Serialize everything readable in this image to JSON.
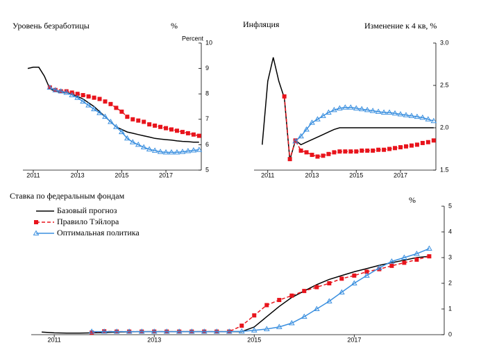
{
  "chart_data": [
    {
      "type": "line",
      "title": "Уровень безработицы",
      "unit": "%",
      "axis_label": "Percent",
      "x": [
        2010.75,
        2011,
        2011.25,
        2011.5,
        2011.75,
        2012,
        2012.25,
        2012.5,
        2012.75,
        2013,
        2013.25,
        2013.5,
        2013.75,
        2014,
        2014.25,
        2014.5,
        2014.75,
        2015,
        2015.25,
        2015.5,
        2015.75,
        2016,
        2016.25,
        2016.5,
        2016.75,
        2017,
        2017.25,
        2017.5,
        2017.75,
        2018,
        2018.25,
        2018.5
      ],
      "xlim": [
        2010.53,
        2018.6
      ],
      "xticks": [
        2011,
        2013,
        2015,
        2017
      ],
      "ylim": [
        5,
        10
      ],
      "yticks": [
        5,
        6,
        7,
        8,
        9,
        10
      ],
      "series": [
        {
          "color": "#000000",
          "values": [
            9.0,
            9.05,
            9.05,
            8.7,
            8.2,
            8.1,
            8.05,
            8.05,
            8.0,
            7.9,
            7.8,
            7.65,
            7.5,
            7.3,
            7.1,
            6.9,
            6.7,
            6.6,
            6.5,
            6.45,
            6.4,
            6.35,
            6.3,
            6.25,
            6.22,
            6.2,
            6.18,
            6.15,
            6.13,
            6.12,
            6.1,
            6.1
          ]
        },
        {
          "color": "#e8141c",
          "marker": "square",
          "dash": true,
          "values": [
            null,
            null,
            null,
            null,
            8.25,
            8.15,
            8.1,
            8.1,
            8.05,
            8.0,
            7.95,
            7.9,
            7.85,
            7.8,
            7.7,
            7.6,
            7.45,
            7.3,
            7.1,
            7.0,
            6.95,
            6.9,
            6.8,
            6.75,
            6.7,
            6.65,
            6.6,
            6.55,
            6.5,
            6.45,
            6.4,
            6.35
          ]
        },
        {
          "color": "#3a8fdf",
          "marker": "triangle",
          "values": [
            null,
            null,
            null,
            null,
            8.25,
            8.15,
            8.1,
            8.05,
            7.95,
            7.85,
            7.7,
            7.55,
            7.4,
            7.25,
            7.1,
            6.9,
            6.7,
            6.5,
            6.25,
            6.1,
            6.0,
            5.9,
            5.82,
            5.77,
            5.72,
            5.7,
            5.7,
            5.7,
            5.72,
            5.75,
            5.78,
            5.8
          ]
        }
      ]
    },
    {
      "type": "line",
      "title": "Инфляция",
      "unit": "Изменение к 4 кв, %",
      "x": [
        2010.75,
        2011,
        2011.25,
        2011.5,
        2011.75,
        2012,
        2012.25,
        2012.5,
        2012.75,
        2013,
        2013.25,
        2013.5,
        2013.75,
        2014,
        2014.25,
        2014.5,
        2014.75,
        2015,
        2015.25,
        2015.5,
        2015.75,
        2016,
        2016.25,
        2016.5,
        2016.75,
        2017,
        2017.25,
        2017.5,
        2017.75,
        2018,
        2018.25,
        2018.5
      ],
      "xlim": [
        2010.38,
        2018.6
      ],
      "xticks": [
        2011,
        2013,
        2015,
        2017
      ],
      "ylim": [
        1.5,
        3.0
      ],
      "yticks": [
        1.5,
        {
          "value": 2,
          "label": "2.0"
        },
        2.5,
        {
          "value": 3,
          "label": "3.0"
        }
      ],
      "series": [
        {
          "color": "#000000",
          "values": [
            1.8,
            2.55,
            2.83,
            2.55,
            2.35,
            1.62,
            1.85,
            1.8,
            1.83,
            1.86,
            1.89,
            1.92,
            1.95,
            1.98,
            2.0,
            2.0,
            2.0,
            2.0,
            2.0,
            2.0,
            2.0,
            2.0,
            2.0,
            2.0,
            2.0,
            2.0,
            2.0,
            2.0,
            2.0,
            2.0,
            2.0,
            2.0
          ]
        },
        {
          "color": "#e8141c",
          "marker": "square",
          "dash": true,
          "values": [
            null,
            null,
            null,
            null,
            2.37,
            1.63,
            1.85,
            1.73,
            1.71,
            1.68,
            1.66,
            1.67,
            1.69,
            1.71,
            1.72,
            1.72,
            1.72,
            1.72,
            1.73,
            1.73,
            1.73,
            1.74,
            1.74,
            1.75,
            1.76,
            1.77,
            1.78,
            1.79,
            1.8,
            1.82,
            1.83,
            1.85
          ]
        },
        {
          "color": "#3a8fdf",
          "marker": "triangle",
          "values": [
            null,
            null,
            null,
            null,
            null,
            null,
            1.84,
            1.9,
            1.98,
            2.06,
            2.1,
            2.14,
            2.18,
            2.21,
            2.23,
            2.24,
            2.24,
            2.23,
            2.22,
            2.21,
            2.2,
            2.19,
            2.18,
            2.18,
            2.17,
            2.16,
            2.15,
            2.14,
            2.13,
            2.12,
            2.1,
            2.08
          ]
        }
      ]
    },
    {
      "type": "line",
      "title": "Ставка по федеральным фондам",
      "unit": "%",
      "x": [
        2010.75,
        2011,
        2011.25,
        2011.5,
        2011.75,
        2012,
        2012.25,
        2012.5,
        2012.75,
        2013,
        2013.25,
        2013.5,
        2013.75,
        2014,
        2014.25,
        2014.5,
        2014.75,
        2015,
        2015.25,
        2015.5,
        2015.75,
        2016,
        2016.25,
        2016.5,
        2016.75,
        2017,
        2017.25,
        2017.5,
        2017.75,
        2018,
        2018.25,
        2018.5
      ],
      "xlim": [
        2010.54,
        2018.8
      ],
      "xticks": [
        2011,
        2013,
        2015,
        2017
      ],
      "ylim": [
        0,
        5
      ],
      "yticks": [
        0,
        1,
        2,
        3,
        4,
        5
      ],
      "series": [
        {
          "name": "Базовый прогноз",
          "color": "#000000",
          "values": [
            0.1,
            0.07,
            0.06,
            0.06,
            0.07,
            0.08,
            0.1,
            0.11,
            0.12,
            0.12,
            0.12,
            0.12,
            0.12,
            0.12,
            0.12,
            0.12,
            0.12,
            0.3,
            0.7,
            1.1,
            1.45,
            1.7,
            1.95,
            2.15,
            2.3,
            2.45,
            2.57,
            2.7,
            2.8,
            2.9,
            3.0,
            3.05
          ]
        },
        {
          "name": "Правило Тэйлора",
          "color": "#e8141c",
          "marker": "square",
          "dash": true,
          "values": [
            null,
            null,
            null,
            null,
            0.08,
            0.13,
            0.12,
            0.12,
            0.12,
            0.12,
            0.12,
            0.12,
            0.12,
            0.12,
            0.12,
            0.12,
            0.35,
            0.75,
            1.15,
            1.35,
            1.52,
            1.7,
            1.85,
            2.0,
            2.18,
            2.3,
            2.45,
            2.55,
            2.68,
            2.8,
            2.92,
            3.05
          ]
        },
        {
          "name": "Оптимальная политика",
          "color": "#3a8fdf",
          "marker": "triangle",
          "values": [
            null,
            null,
            null,
            null,
            0.12,
            0.12,
            0.12,
            0.12,
            0.12,
            0.12,
            0.12,
            0.12,
            0.12,
            0.12,
            0.12,
            0.12,
            0.13,
            0.17,
            0.22,
            0.3,
            0.45,
            0.7,
            1.0,
            1.3,
            1.65,
            2.0,
            2.3,
            2.6,
            2.85,
            3.0,
            3.15,
            3.35
          ]
        }
      ]
    }
  ]
}
